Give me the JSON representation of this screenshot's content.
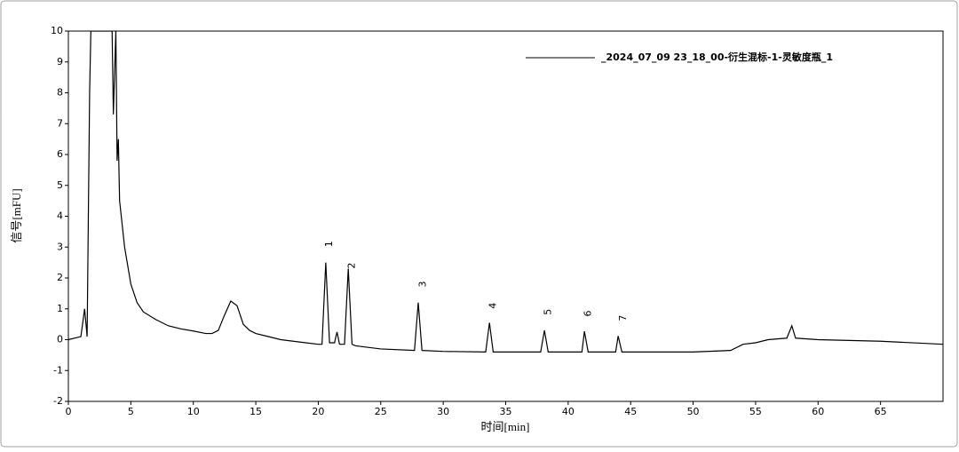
{
  "chart_data": {
    "type": "line",
    "x_label": "时间[min]",
    "y_label": "信号[mFU]",
    "xlim": [
      0,
      70
    ],
    "ylim": [
      -2,
      10
    ],
    "xticks": [
      0,
      5,
      10,
      15,
      20,
      25,
      30,
      35,
      40,
      45,
      50,
      55,
      60,
      65
    ],
    "yticks": [
      -2,
      -1,
      0,
      1,
      2,
      3,
      4,
      5,
      6,
      7,
      8,
      9,
      10
    ],
    "legend": "top-right",
    "series": [
      {
        "name": "_2024_07_09 23_18_00-衍生混标-1-灵敏度瓶_1",
        "color": "#000000",
        "x": [
          0,
          1.0,
          1.3,
          1.5,
          1.7,
          1.8,
          2.5,
          3.0,
          3.5,
          3.6,
          3.8,
          3.9,
          4.0,
          4.1,
          4.5,
          5,
          5.5,
          6,
          7,
          8,
          9,
          10,
          11,
          11.5,
          12,
          12.5,
          13,
          13.5,
          14,
          14.5,
          15,
          16,
          17,
          18,
          19,
          20,
          20.3,
          20.6,
          20.9,
          21.3,
          21.5,
          21.7,
          22.1,
          22.4,
          22.7,
          23,
          25,
          27.7,
          28,
          28.3,
          30,
          33.4,
          33.7,
          34,
          37.8,
          38.1,
          38.4,
          41.1,
          41.3,
          41.6,
          43.8,
          44.0,
          44.3,
          50,
          53,
          54,
          55,
          56,
          57.5,
          57.9,
          58.2,
          60,
          65,
          70
        ],
        "values": [
          0,
          0.1,
          1.0,
          0.1,
          8,
          10,
          10,
          10,
          10,
          7.3,
          10,
          5.8,
          6.5,
          4.5,
          3.0,
          1.8,
          1.2,
          0.9,
          0.65,
          0.45,
          0.35,
          0.28,
          0.2,
          0.2,
          0.3,
          0.8,
          1.25,
          1.1,
          0.5,
          0.3,
          0.2,
          0.1,
          0.0,
          -0.05,
          -0.1,
          -0.15,
          -0.15,
          2.5,
          -0.1,
          -0.1,
          0.25,
          -0.15,
          -0.15,
          2.3,
          -0.15,
          -0.2,
          -0.3,
          -0.35,
          1.2,
          -0.35,
          -0.38,
          -0.4,
          0.55,
          -0.4,
          -0.4,
          0.3,
          -0.4,
          -0.4,
          0.27,
          -0.4,
          -0.4,
          0.12,
          -0.4,
          -0.4,
          -0.35,
          -0.15,
          -0.1,
          0.0,
          0.05,
          0.45,
          0.05,
          0.0,
          -0.05,
          -0.15
        ]
      }
    ],
    "annotations": [
      {
        "text": "1",
        "x": 20.9,
        "y": 3.1
      },
      {
        "text": "2",
        "x": 22.7,
        "y": 2.4
      },
      {
        "text": "3",
        "x": 28.4,
        "y": 1.8
      },
      {
        "text": "4",
        "x": 34.0,
        "y": 1.1
      },
      {
        "text": "5",
        "x": 38.4,
        "y": 0.9
      },
      {
        "text": "6",
        "x": 41.6,
        "y": 0.85
      },
      {
        "text": "7",
        "x": 44.4,
        "y": 0.7
      }
    ]
  }
}
